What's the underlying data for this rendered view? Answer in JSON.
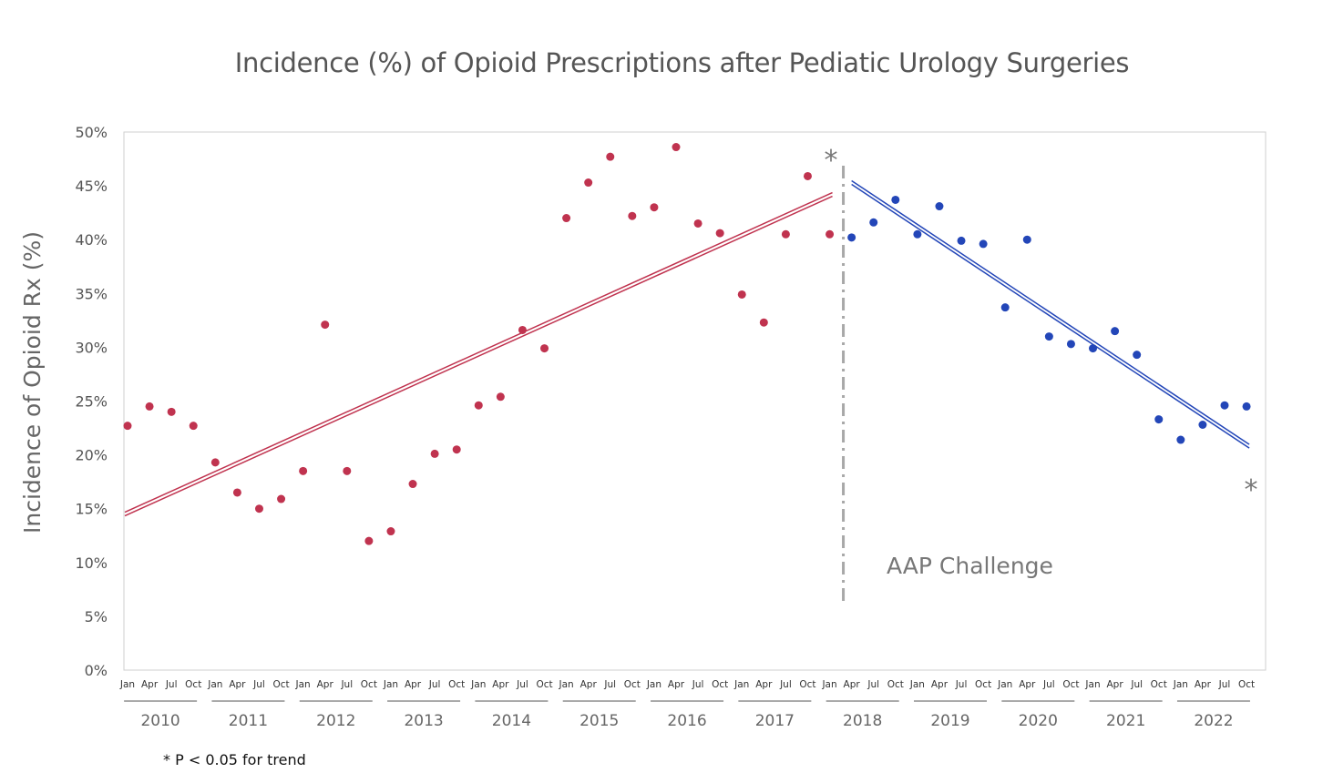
{
  "chart_data": {
    "type": "scatter",
    "title": "Incidence (%) of Opioid Prescriptions after Pediatic Urology Surgeries",
    "ylabel": "Incidence of Opioid Rx (%)",
    "xlabel": "",
    "ylim": [
      0,
      50
    ],
    "yticks": [
      "0%",
      "5%",
      "10%",
      "15%",
      "20%",
      "25%",
      "30%",
      "35%",
      "40%",
      "45%",
      "50%"
    ],
    "grid": false,
    "quarter_labels": [
      "Jan",
      "Apr",
      "Jul",
      "Oct"
    ],
    "years": [
      "2010",
      "2011",
      "2012",
      "2013",
      "2014",
      "2015",
      "2016",
      "2017",
      "2018",
      "2019",
      "2020",
      "2021",
      "2022"
    ],
    "colors": {
      "pre": "#c0334f",
      "post": "#2346b8",
      "divider": "#a8a8a8",
      "text": "#666666"
    },
    "series": [
      {
        "color": "#c0334f",
        "start": "2010 Jan",
        "values": [
          22.7,
          24.5,
          24.0,
          22.7,
          19.3,
          16.5,
          15.0,
          15.9,
          18.5,
          32.1,
          18.5,
          12.0,
          12.9,
          17.3,
          20.1,
          20.5,
          24.6,
          25.4,
          31.6,
          29.9,
          42.0,
          45.3,
          47.7,
          42.2,
          43.0,
          48.6,
          41.5,
          40.6,
          34.9,
          32.3,
          40.5,
          45.9,
          40.5
        ],
        "trend": {
          "from": [
            "2010 Jan",
            14.5
          ],
          "to": [
            "2018 Jan",
            44.2
          ]
        }
      },
      {
        "color": "#2346b8",
        "start": "2018 Apr",
        "values": [
          40.2,
          41.6,
          43.7,
          40.5,
          43.1,
          39.9,
          39.6,
          33.7,
          40.0,
          31.0,
          30.3,
          29.9,
          31.5,
          29.3,
          23.3,
          21.4,
          22.8,
          24.6,
          24.5
        ],
        "trend": {
          "from": [
            "2018 Apr",
            45.3
          ],
          "to": [
            "2022 Oct",
            20.8
          ]
        }
      }
    ],
    "annotations": {
      "divider_label": "AAP Challenge",
      "significance_marker": "*",
      "footnote": "* P < 0.05 for trend"
    }
  }
}
